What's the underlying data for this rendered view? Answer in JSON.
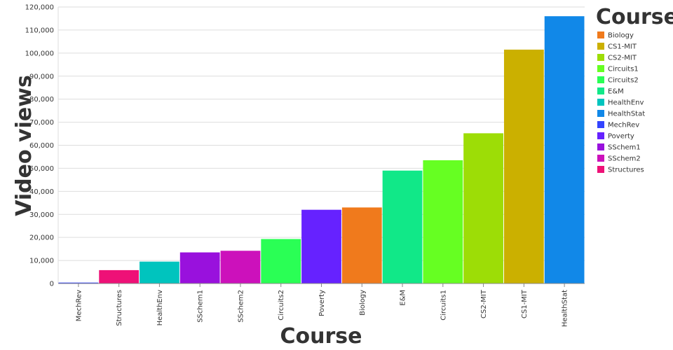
{
  "chart_data": {
    "type": "bar",
    "xlabel": "Course",
    "ylabel": "Video views",
    "ylim": [
      0,
      120000
    ],
    "yticks": [
      0,
      10000,
      20000,
      30000,
      40000,
      50000,
      60000,
      70000,
      80000,
      90000,
      100000,
      110000,
      120000
    ],
    "ytick_labels": [
      "0",
      "10,000",
      "20,000",
      "30,000",
      "40,000",
      "50,000",
      "60,000",
      "70,000",
      "80,000",
      "90,000",
      "100,000",
      "110,000",
      "120,000"
    ],
    "grid": true,
    "legend": {
      "title": "Course",
      "placement": "right",
      "entries": [
        "Biology",
        "CS1-MIT",
        "CS2-MIT",
        "Circuits1",
        "Circuits2",
        "E&M",
        "HealthEnv",
        "HealthStat",
        "MechRev",
        "Poverty",
        "SSchem1",
        "SSchem2",
        "Structures"
      ]
    },
    "colors": {
      "Biology": "#f07a1c",
      "CS1-MIT": "#cbb000",
      "CS2-MIT": "#9ddd06",
      "Circuits1": "#66ff22",
      "Circuits2": "#2aff55",
      "E&M": "#11e888",
      "HealthEnv": "#00c4be",
      "HealthStat": "#1188e8",
      "MechRev": "#3344ff",
      "Poverty": "#6622ff",
      "SSchem1": "#9911dd",
      "SSchem2": "#cc11bb",
      "Structures": "#ee1177"
    },
    "categories": [
      "MechRev",
      "Structures",
      "HealthEnv",
      "SSchem1",
      "SSchem2",
      "Circuits2",
      "Poverty",
      "Biology",
      "E&M",
      "Circuits1",
      "CS2-MIT",
      "CS1-MIT",
      "HealthStat"
    ],
    "values": [
      400,
      5800,
      9500,
      13500,
      14200,
      19300,
      32000,
      33000,
      49000,
      53500,
      65200,
      101500,
      116000
    ]
  }
}
